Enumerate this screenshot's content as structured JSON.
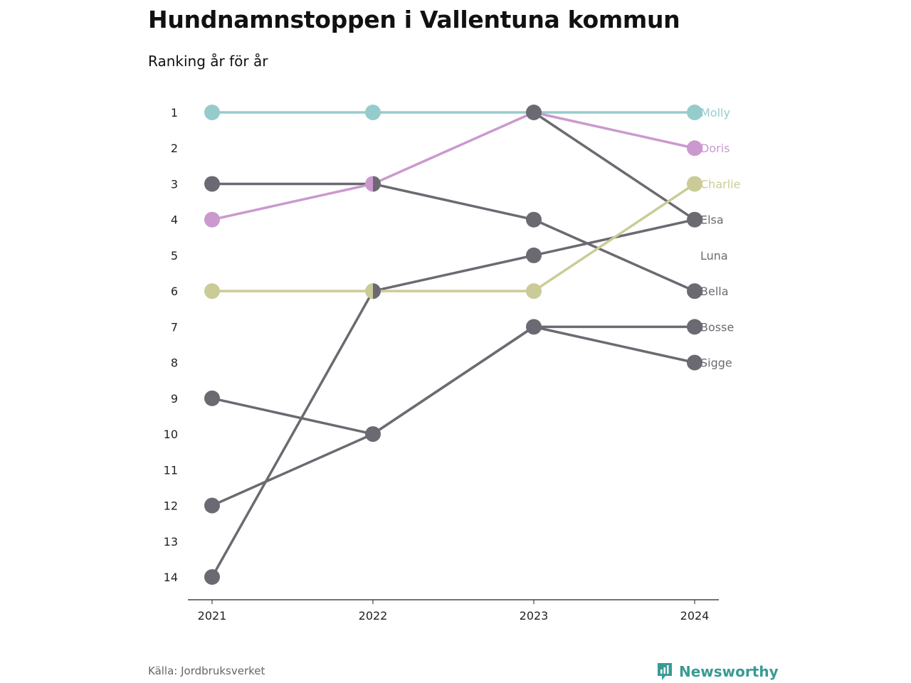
{
  "title": "Hundnamnstoppen i Vallentuna kommun",
  "subtitle": "Ranking år för år",
  "source": "Källa: Jordbruksverket",
  "brand": "Newsworthy",
  "colors": {
    "Molly": "#96cbcc",
    "Doris": "#cb99cf",
    "Charlie": "#cbcb98",
    "default": "#6b6a72",
    "axis": "#222222",
    "brand": "#3a9a94"
  },
  "chart_data": {
    "type": "line",
    "x": [
      "2021",
      "2022",
      "2023",
      "2024"
    ],
    "y_ticks": [
      1,
      2,
      3,
      4,
      5,
      6,
      7,
      8,
      9,
      10,
      11,
      12,
      13,
      14
    ],
    "ylim": [
      1,
      14
    ],
    "y_reversed": true,
    "grid": false,
    "series": [
      {
        "name": "Bosse",
        "values": [
          12,
          10,
          7,
          7
        ]
      },
      {
        "name": "Sigge",
        "values": [
          null,
          10,
          7,
          8
        ]
      },
      {
        "name": "Bella",
        "values": [
          3,
          3,
          4,
          6
        ]
      },
      {
        "name": "Luna",
        "values": [
          9,
          10,
          null,
          null
        ]
      },
      {
        "name": "Elsa",
        "values": [
          14,
          6,
          5,
          4
        ]
      },
      {
        "name": "Molly",
        "values": [
          1,
          1,
          1,
          1
        ],
        "highlight": true
      },
      {
        "name": "Doris",
        "values": [
          4,
          3,
          1,
          2
        ],
        "highlight": true
      },
      {
        "name": "Charlie",
        "values": [
          6,
          6,
          6,
          3
        ],
        "highlight": true
      }
    ],
    "extra_points": [
      {
        "year": "2023",
        "rank": 1
      },
      {
        "year": "2024",
        "rank": 4
      }
    ],
    "extra_segments": [
      {
        "from": {
          "year": "2023",
          "rank": 1
        },
        "to": {
          "year": "2024",
          "rank": 4
        }
      }
    ],
    "end_labels": [
      {
        "name": "Molly",
        "rank": 1
      },
      {
        "name": "Doris",
        "rank": 2
      },
      {
        "name": "Charlie",
        "rank": 3
      },
      {
        "name": "Elsa",
        "rank": 4
      },
      {
        "name": "Luna",
        "rank": 5
      },
      {
        "name": "Bella",
        "rank": 6
      },
      {
        "name": "Bosse",
        "rank": 7
      },
      {
        "name": "Sigge",
        "rank": 8
      }
    ]
  }
}
